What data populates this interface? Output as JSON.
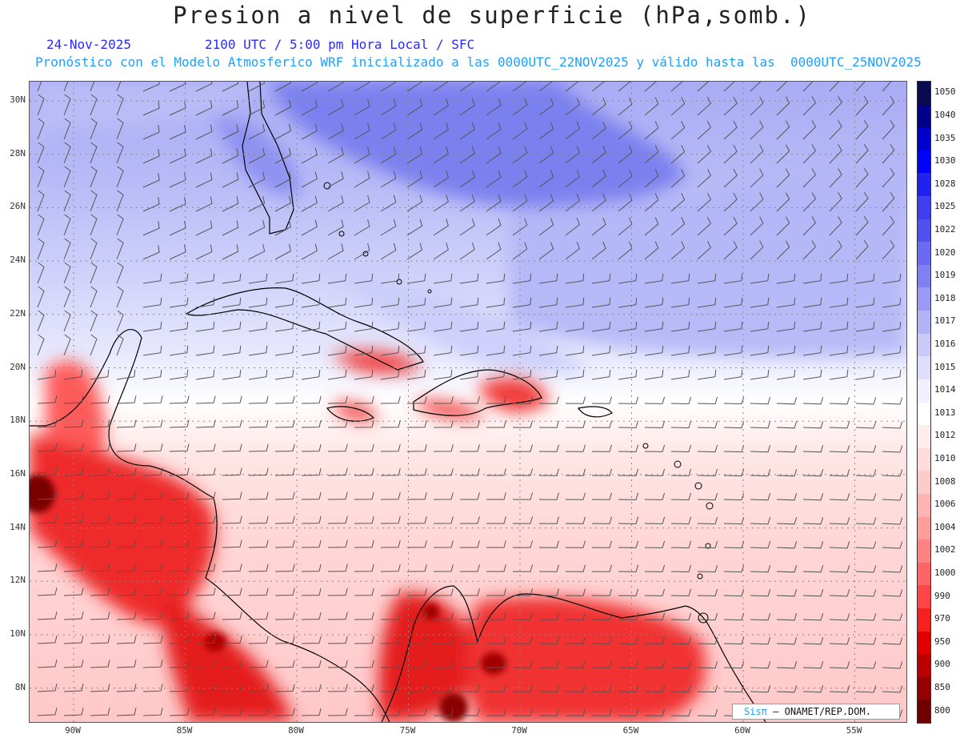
{
  "header": {
    "title": "Presion a nivel de superficie (hPa,somb.)",
    "date": "24-Nov-2025",
    "valid_time": "2100 UTC / 5:00 pm Hora Local / SFC",
    "model_info": "Pronóstico con el Modelo Atmosferico WRF inicializado a las 0000UTC_22NOV2025 y válido hasta las  0000UTC_25NOV2025"
  },
  "map": {
    "lat_labels": [
      "30N",
      "28N",
      "26N",
      "24N",
      "22N",
      "20N",
      "18N",
      "16N",
      "14N",
      "12N",
      "10N",
      "8N"
    ],
    "lon_labels": [
      "90W",
      "85W",
      "80W",
      "75W",
      "70W",
      "65W",
      "60W",
      "55W"
    ],
    "colors": {
      "low": "#e00000",
      "high": "#6a72ee",
      "neutral": "#ffffff",
      "coast": "#000000",
      "barb": "#444444"
    }
  },
  "colorbar": {
    "labels": [
      "1050",
      "1040",
      "1035",
      "1030",
      "1028",
      "1025",
      "1022",
      "1020",
      "1019",
      "1018",
      "1017",
      "1016",
      "1015",
      "1014",
      "1013",
      "1012",
      "1010",
      "1008",
      "1006",
      "1004",
      "1002",
      "1000",
      "990",
      "970",
      "950",
      "900",
      "850",
      "800"
    ],
    "colors": [
      "#0a0a50",
      "#00008b",
      "#0000cd",
      "#0000ff",
      "#2222ee",
      "#3f3fef",
      "#5050f0",
      "#6a6af2",
      "#8080f4",
      "#9a9af6",
      "#b2b2f8",
      "#cacafa",
      "#dedefc",
      "#f0f0fe",
      "#ffffff",
      "#ffecec",
      "#ffdcdc",
      "#ffcaca",
      "#ffb4b4",
      "#ff9c9c",
      "#ff8282",
      "#ff6464",
      "#ff4545",
      "#f52020",
      "#e00000",
      "#bb0000",
      "#950000",
      "#700000"
    ]
  },
  "credit": {
    "brand": "Sisπ",
    "org": "– ONAMET/REP.DOM."
  }
}
